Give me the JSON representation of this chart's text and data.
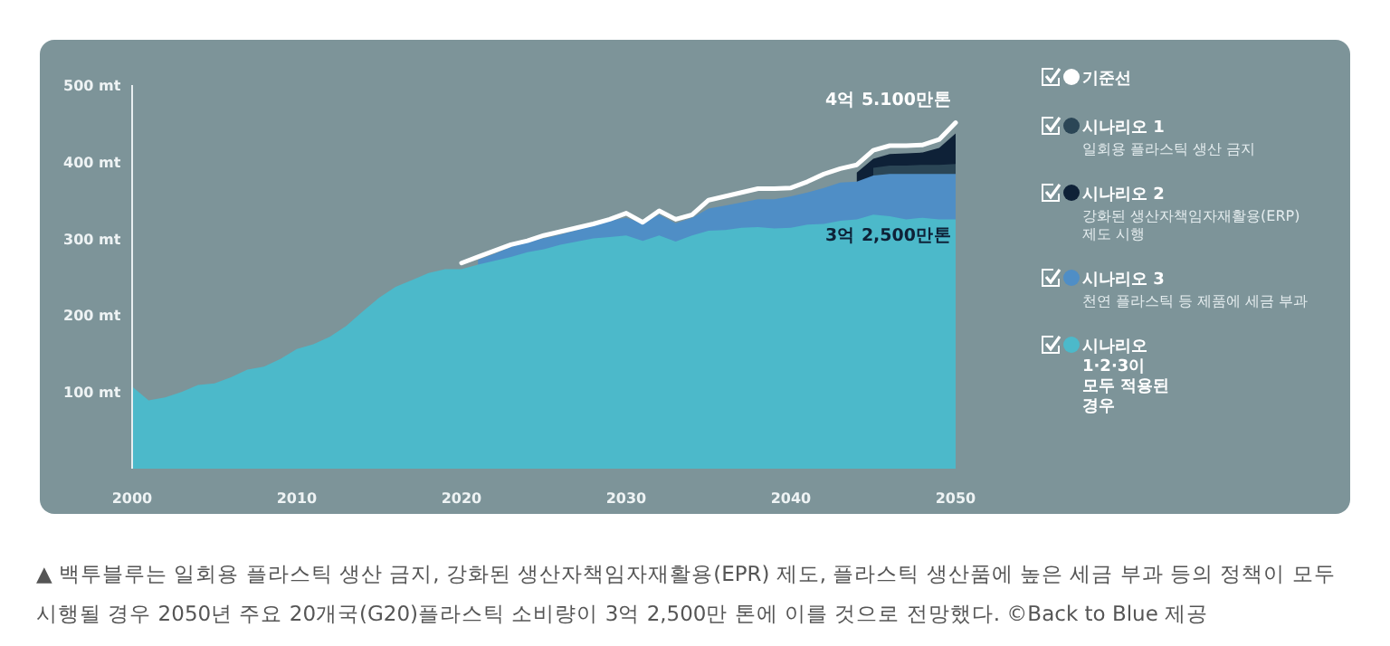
{
  "chart_data": {
    "type": "area",
    "series": [
      {
        "name": "기준선",
        "type": "line",
        "color": "#ffffff",
        "x": [
          2020,
          2021,
          2022,
          2023,
          2024,
          2025,
          2026,
          2027,
          2028,
          2029,
          2030,
          2031,
          2032,
          2033,
          2034,
          2035,
          2036,
          2037,
          2038,
          2039,
          2040,
          2041,
          2042,
          2043,
          2044,
          2045,
          2046,
          2047,
          2048,
          2049,
          2050
        ],
        "values": [
          268,
          276,
          284,
          292,
          297,
          304,
          309,
          314,
          319,
          325,
          333,
          321,
          336,
          325,
          331,
          350,
          355,
          360,
          365,
          365,
          366,
          374,
          384,
          391,
          396,
          415,
          421,
          421,
          422,
          429,
          451
        ]
      },
      {
        "name": "시나리오 1\n일회용 플라스틱 생산 금지",
        "color": "#2b4656",
        "x": [
          2045,
          2046,
          2047,
          2048,
          2049,
          2050
        ],
        "values": [
          392,
          395,
          395,
          396,
          396,
          397
        ]
      },
      {
        "name": "시나리오 2\n강화된 생산자책임자재활용(ERP)\n제도 시행",
        "color": "#0e2137",
        "x": [
          2044,
          2045,
          2046,
          2047,
          2048,
          2049,
          2050
        ],
        "values": [
          386,
          404,
          410,
          411,
          412,
          418,
          437
        ]
      },
      {
        "name": "시나리오 3\n천연 플라스틱 등 제품에 세금 부과",
        "color": "#4f8ec6",
        "x": [
          2021,
          2022,
          2023,
          2024,
          2025,
          2026,
          2027,
          2028,
          2029,
          2030,
          2031,
          2032,
          2033,
          2034,
          2035,
          2036,
          2037,
          2038,
          2039,
          2040,
          2041,
          2042,
          2043,
          2044,
          2045,
          2046,
          2047,
          2048,
          2049,
          2050
        ],
        "values": [
          272,
          280,
          289,
          296,
          300,
          305,
          311,
          317,
          323,
          327,
          320,
          331,
          320,
          327,
          339,
          343,
          347,
          351,
          351,
          355,
          360,
          366,
          373,
          374,
          382,
          384,
          384,
          384,
          384,
          384
        ]
      },
      {
        "name": "시나리오 1·2·3이 모두 적용된 경우",
        "color": "#4cb9ca",
        "x": [
          2000,
          2001,
          2002,
          2003,
          2004,
          2005,
          2006,
          2007,
          2008,
          2009,
          2010,
          2011,
          2012,
          2013,
          2014,
          2015,
          2016,
          2017,
          2018,
          2019,
          2020,
          2021,
          2022,
          2023,
          2024,
          2025,
          2026,
          2027,
          2028,
          2029,
          2030,
          2031,
          2032,
          2033,
          2034,
          2035,
          2036,
          2037,
          2038,
          2039,
          2040,
          2041,
          2042,
          2043,
          2044,
          2045,
          2046,
          2047,
          2048,
          2049,
          2050
        ],
        "values": [
          107,
          89,
          93,
          100,
          109,
          111,
          119,
          129,
          133,
          143,
          156,
          162,
          172,
          186,
          205,
          223,
          237,
          246,
          255,
          260,
          260,
          266,
          271,
          276,
          282,
          286,
          292,
          296,
          300,
          302,
          304,
          297,
          304,
          296,
          304,
          310,
          311,
          314,
          315,
          313,
          314,
          318,
          319,
          323,
          325,
          331,
          329,
          325,
          327,
          325,
          325
        ]
      }
    ],
    "xlim": [
      2000,
      2050
    ],
    "xticks": [
      2000,
      2010,
      2020,
      2030,
      2040,
      2050
    ],
    "ylim": [
      0,
      500
    ],
    "yticks": [
      {
        "value": 100,
        "label": "100 mt"
      },
      {
        "value": 200,
        "label": "200 mt"
      },
      {
        "value": 300,
        "label": "300 mt"
      },
      {
        "value": 400,
        "label": "400 mt"
      },
      {
        "value": 500,
        "label": "500 mt"
      }
    ],
    "legend": "right",
    "annotations": [
      {
        "text": "4억 5.100만톤",
        "x": 2050,
        "y": 451
      },
      {
        "text": "3억 2,500만톤",
        "x": 2050,
        "y": 325
      },
      "▲ 백투블루는 일회용 플라스틱 생산 금지, 강화된 생산자책임자재활용(EPR) 제도, 플라스틱 생산품에 높은 세금 부과 등의 정책이 모두 시행될 경우 2050년 주요 20개국(G20)플라스틱 소비량이 3억 2,500만 톤에 이를 것으로 전망했다. ©Back to Blue 제공"
    ]
  }
}
